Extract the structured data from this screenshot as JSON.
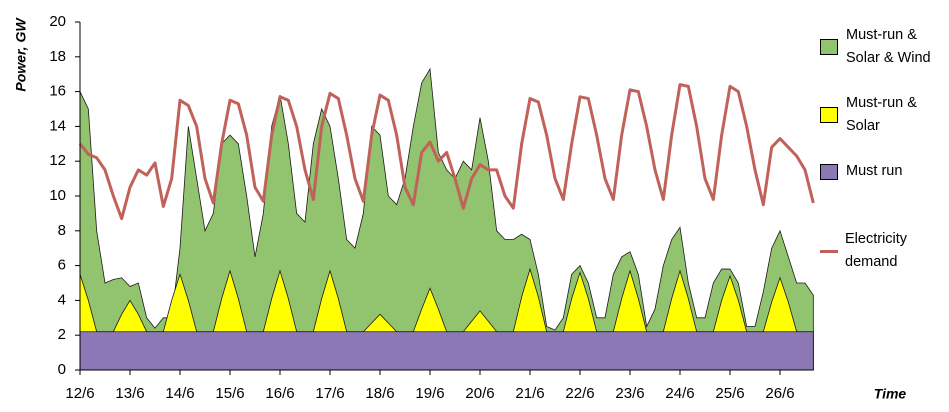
{
  "chart_data": {
    "type": "area",
    "y_label": "Power, GW",
    "x_label": "Time",
    "categories": [
      "12/6",
      null,
      null,
      null,
      null,
      null,
      "13/6",
      null,
      null,
      null,
      null,
      null,
      "14/6",
      null,
      null,
      null,
      null,
      null,
      "15/6",
      null,
      null,
      null,
      null,
      null,
      "16/6",
      null,
      null,
      null,
      null,
      null,
      "17/6",
      null,
      null,
      null,
      null,
      null,
      "18/6",
      null,
      null,
      null,
      null,
      null,
      "19/6",
      null,
      null,
      null,
      null,
      null,
      "20/6",
      null,
      null,
      null,
      null,
      null,
      "21/6",
      null,
      null,
      null,
      null,
      null,
      "22/6",
      null,
      null,
      null,
      null,
      null,
      "23/6",
      null,
      null,
      null,
      null,
      null,
      "24/6",
      null,
      null,
      null,
      null,
      null,
      "25/6",
      null,
      null,
      null,
      null,
      null,
      "26/6",
      null,
      null,
      null,
      null
    ],
    "ylim": [
      0,
      20
    ],
    "yticks": [
      0,
      2,
      4,
      6,
      8,
      10,
      12,
      14,
      16,
      18,
      20
    ],
    "grid": false,
    "legend": "right",
    "series": [
      {
        "name": "Must-run & Solar & Wind",
        "type": "area",
        "color": "#92c36e",
        "values": [
          16,
          15,
          8,
          5,
          5.2,
          5.3,
          4.8,
          5,
          3,
          2.4,
          3,
          3,
          7,
          14,
          11,
          8,
          9,
          13,
          13.5,
          13,
          10,
          6.5,
          9,
          14,
          15.8,
          13,
          9,
          8.5,
          13,
          15,
          14,
          11,
          7.5,
          7,
          9,
          14,
          13.5,
          10,
          9.5,
          11,
          14,
          16.5,
          17.3,
          12.5,
          11.5,
          11,
          12,
          11.5,
          14.5,
          12,
          8,
          7.5,
          7.5,
          7.8,
          7.5,
          5.5,
          2.5,
          2.3,
          3,
          5.5,
          6,
          5,
          3,
          3,
          5.5,
          6.5,
          6.8,
          5.5,
          2.5,
          3.5,
          6,
          7.5,
          8.2,
          5,
          3,
          3,
          5,
          5.8,
          5.8,
          5,
          2.5,
          2.5,
          4.5,
          7,
          8,
          6.5,
          5,
          5,
          4.3
        ]
      },
      {
        "name": "Must-run & Solar",
        "type": "area",
        "color": "#ffff00",
        "values": [
          5.5,
          4,
          2.2,
          2.2,
          2.2,
          3.2,
          4,
          3.2,
          2.2,
          2.2,
          2.2,
          4,
          5.5,
          4,
          2.2,
          2.2,
          2.2,
          4.1,
          5.7,
          4.1,
          2.2,
          2.2,
          2.2,
          4.1,
          5.7,
          4.1,
          2.2,
          2.2,
          2.2,
          4.1,
          5.7,
          4.1,
          2.2,
          2.2,
          2.2,
          2.7,
          3.2,
          2.7,
          2.2,
          2.2,
          2.2,
          3.5,
          4.7,
          3.5,
          2.2,
          2.2,
          2.2,
          2.8,
          3.4,
          2.8,
          2.2,
          2.2,
          2.2,
          4.2,
          5.8,
          4.2,
          2.2,
          2.2,
          2.2,
          4.1,
          5.6,
          4.1,
          2.2,
          2.2,
          2.2,
          4.1,
          5.7,
          4.1,
          2.2,
          2.2,
          2.2,
          4.1,
          5.7,
          4.1,
          2.2,
          2.2,
          2.2,
          4,
          5.4,
          4,
          2.2,
          2.2,
          2.2,
          3.9,
          5.3,
          3.9,
          2.2,
          2.2,
          2.2
        ]
      },
      {
        "name": "Must run",
        "type": "area",
        "color": "#8b78b4",
        "values": [
          2.2,
          2.2,
          2.2,
          2.2,
          2.2,
          2.2,
          2.2,
          2.2,
          2.2,
          2.2,
          2.2,
          2.2,
          2.2,
          2.2,
          2.2,
          2.2,
          2.2,
          2.2,
          2.2,
          2.2,
          2.2,
          2.2,
          2.2,
          2.2,
          2.2,
          2.2,
          2.2,
          2.2,
          2.2,
          2.2,
          2.2,
          2.2,
          2.2,
          2.2,
          2.2,
          2.2,
          2.2,
          2.2,
          2.2,
          2.2,
          2.2,
          2.2,
          2.2,
          2.2,
          2.2,
          2.2,
          2.2,
          2.2,
          2.2,
          2.2,
          2.2,
          2.2,
          2.2,
          2.2,
          2.2,
          2.2,
          2.2,
          2.2,
          2.2,
          2.2,
          2.2,
          2.2,
          2.2,
          2.2,
          2.2,
          2.2,
          2.2,
          2.2,
          2.2,
          2.2,
          2.2,
          2.2,
          2.2,
          2.2,
          2.2,
          2.2,
          2.2,
          2.2,
          2.2,
          2.2,
          2.2,
          2.2,
          2.2,
          2.2,
          2.2,
          2.2,
          2.2,
          2.2,
          2.2
        ]
      },
      {
        "name": "Electricity demand",
        "type": "line",
        "color": "#c0615a",
        "values": [
          13,
          12.4,
          12.2,
          11.5,
          10,
          8.7,
          10.5,
          11.5,
          11.2,
          11.9,
          9.4,
          11,
          15.5,
          15.2,
          14,
          11,
          9.6,
          13,
          15.5,
          15.3,
          13.5,
          10.5,
          9.7,
          13.5,
          15.7,
          15.5,
          14,
          11.5,
          9.8,
          14,
          15.9,
          15.6,
          13.5,
          11,
          9.7,
          13.5,
          15.8,
          15.5,
          13.5,
          10.5,
          9.5,
          12.5,
          13.1,
          12,
          12.5,
          11,
          9.3,
          11,
          11.8,
          11.5,
          11.5,
          10,
          9.3,
          13,
          15.6,
          15.4,
          13.5,
          11,
          9.8,
          13,
          15.7,
          15.6,
          13.5,
          11,
          9.8,
          13.5,
          16.1,
          16,
          14,
          11.5,
          9.8,
          13.5,
          16.4,
          16.3,
          14,
          11,
          9.8,
          13.5,
          16.3,
          16,
          14,
          11.5,
          9.5,
          12.8,
          13.3,
          12.8,
          12.3,
          11.5,
          9.6
        ]
      }
    ]
  }
}
